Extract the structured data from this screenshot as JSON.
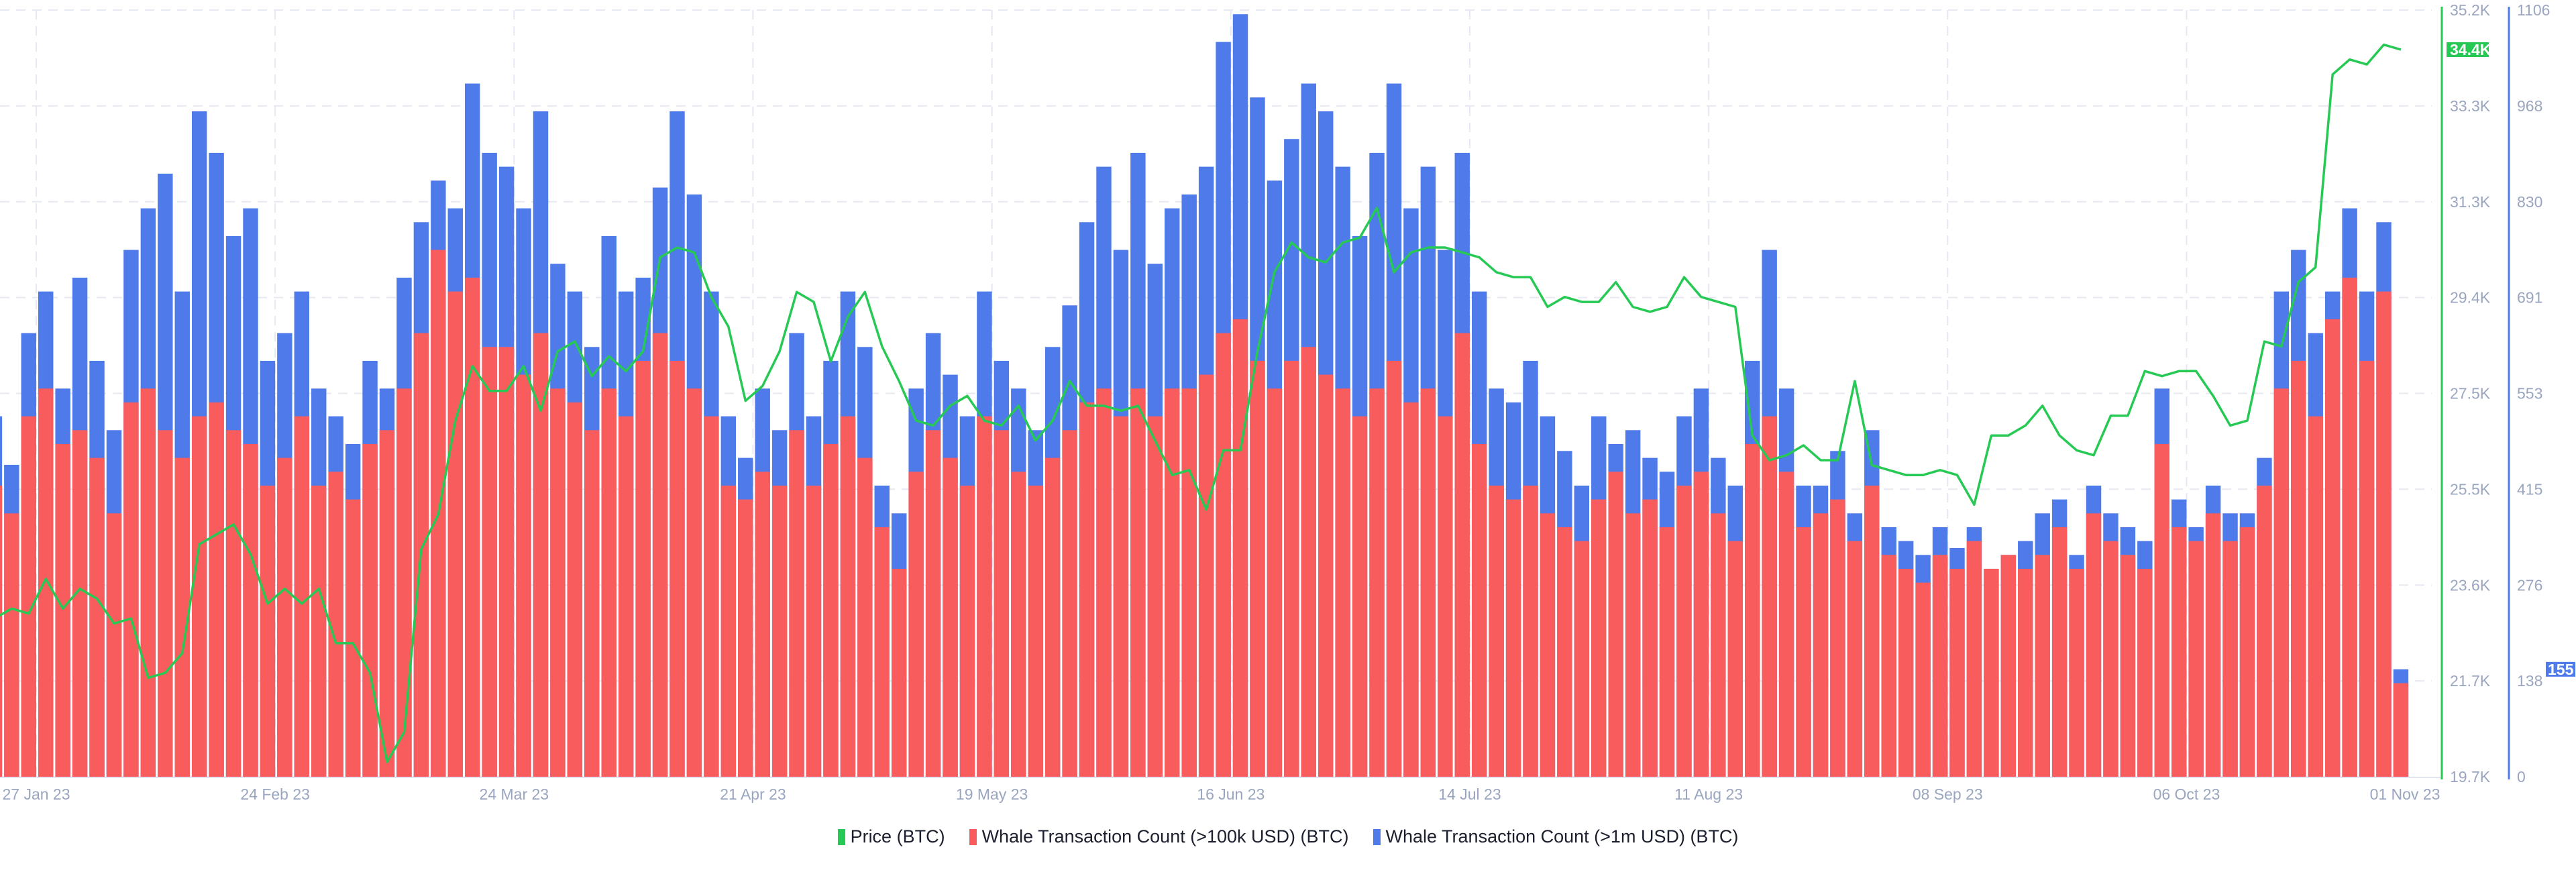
{
  "chart_data": {
    "type": "bar+line",
    "title": "",
    "legend_position": "bottom",
    "grid": true,
    "x_tick_labels": [
      "27 Jan 23",
      "24 Feb 23",
      "24 Mar 23",
      "21 Apr 23",
      "19 May 23",
      "16 Jun 23",
      "14 Jul 23",
      "11 Aug 23",
      "08 Sep 23",
      "06 Oct 23",
      "01 Nov 23"
    ],
    "x_tick_dates": [
      "2023-01-27",
      "2023-02-24",
      "2023-03-24",
      "2023-04-21",
      "2023-05-19",
      "2023-06-16",
      "2023-07-14",
      "2023-08-11",
      "2023-09-08",
      "2023-10-06",
      "2023-11-01"
    ],
    "price_axis": {
      "ticks": [
        "35.2K",
        "33.3K",
        "31.3K",
        "29.4K",
        "27.5K",
        "25.5K",
        "23.6K",
        "21.7K",
        "19.7K"
      ],
      "range": [
        19700,
        35200
      ],
      "color": "#26c953"
    },
    "count_axis": {
      "ticks": [
        "1106",
        "968",
        "830",
        "691",
        "553",
        "415",
        "276",
        "138",
        "0"
      ],
      "range": [
        0,
        1106
      ],
      "color": "#4f7bea"
    },
    "current_price_label": "34.4K",
    "current_count_label": "155",
    "dates": [
      "2023-01-23",
      "2023-01-25",
      "2023-01-27",
      "2023-01-29",
      "2023-01-31",
      "2023-02-02",
      "2023-02-04",
      "2023-02-06",
      "2023-02-08",
      "2023-02-10",
      "2023-02-12",
      "2023-02-14",
      "2023-02-16",
      "2023-02-18",
      "2023-02-20",
      "2023-02-22",
      "2023-02-24",
      "2023-02-26",
      "2023-02-28",
      "2023-03-02",
      "2023-03-04",
      "2023-03-06",
      "2023-03-08",
      "2023-03-10",
      "2023-03-12",
      "2023-03-14",
      "2023-03-16",
      "2023-03-18",
      "2023-03-20",
      "2023-03-22",
      "2023-03-24",
      "2023-03-26",
      "2023-03-28",
      "2023-03-30",
      "2023-04-01",
      "2023-04-03",
      "2023-04-05",
      "2023-04-07",
      "2023-04-09",
      "2023-04-11",
      "2023-04-13",
      "2023-04-15",
      "2023-04-17",
      "2023-04-19",
      "2023-04-21",
      "2023-04-23",
      "2023-04-25",
      "2023-04-27",
      "2023-04-29",
      "2023-05-01",
      "2023-05-03",
      "2023-05-05",
      "2023-05-07",
      "2023-05-09",
      "2023-05-11",
      "2023-05-13",
      "2023-05-15",
      "2023-05-17",
      "2023-05-19",
      "2023-05-21",
      "2023-05-23",
      "2023-05-25",
      "2023-05-27",
      "2023-05-29",
      "2023-05-31",
      "2023-06-02",
      "2023-06-04",
      "2023-06-06",
      "2023-06-08",
      "2023-06-10",
      "2023-06-12",
      "2023-06-14",
      "2023-06-16",
      "2023-06-18",
      "2023-06-20",
      "2023-06-22",
      "2023-06-24",
      "2023-06-26",
      "2023-06-28",
      "2023-06-30",
      "2023-07-02",
      "2023-07-04",
      "2023-07-06",
      "2023-07-08",
      "2023-07-10",
      "2023-07-12",
      "2023-07-14",
      "2023-07-16",
      "2023-07-18",
      "2023-07-20",
      "2023-07-22",
      "2023-07-24",
      "2023-07-26",
      "2023-07-28",
      "2023-07-30",
      "2023-08-01",
      "2023-08-03",
      "2023-08-05",
      "2023-08-07",
      "2023-08-09",
      "2023-08-11",
      "2023-08-13",
      "2023-08-15",
      "2023-08-17",
      "2023-08-19",
      "2023-08-21",
      "2023-08-23",
      "2023-08-25",
      "2023-08-27",
      "2023-08-29",
      "2023-08-31",
      "2023-09-02",
      "2023-09-04",
      "2023-09-06",
      "2023-09-08",
      "2023-09-10",
      "2023-09-12",
      "2023-09-14",
      "2023-09-16",
      "2023-09-18",
      "2023-09-20",
      "2023-09-22",
      "2023-09-24",
      "2023-09-26",
      "2023-09-28",
      "2023-09-30",
      "2023-10-02",
      "2023-10-04",
      "2023-10-06",
      "2023-10-08",
      "2023-10-10",
      "2023-10-12",
      "2023-10-14",
      "2023-10-16",
      "2023-10-18",
      "2023-10-20",
      "2023-10-22",
      "2023-10-24",
      "2023-10-26",
      "2023-10-28",
      "2023-10-30",
      "2023-11-01"
    ],
    "series": [
      {
        "name": "Price (BTC)",
        "type": "line",
        "color": "#26c953",
        "axis": "price",
        "values": [
          22900,
          23100,
          23000,
          23700,
          23100,
          23500,
          23300,
          22800,
          22900,
          21700,
          21800,
          22200,
          24400,
          24600,
          24800,
          24200,
          23200,
          23500,
          23200,
          23500,
          22400,
          22400,
          21800,
          20000,
          20600,
          24300,
          25000,
          26900,
          28000,
          27500,
          27500,
          28000,
          27100,
          28300,
          28500,
          27800,
          28200,
          27900,
          28300,
          30200,
          30400,
          30300,
          29400,
          28800,
          27300,
          27600,
          28300,
          29500,
          29300,
          28100,
          29000,
          29500,
          28400,
          27700,
          26900,
          26800,
          27200,
          27400,
          26900,
          26800,
          27200,
          26500,
          26900,
          27700,
          27200,
          27200,
          27100,
          27200,
          26500,
          25800,
          25900,
          25100,
          26300,
          26300,
          28300,
          29900,
          30500,
          30200,
          30100,
          30500,
          30600,
          31200,
          29900,
          30300,
          30400,
          30400,
          30300,
          30200,
          29900,
          29800,
          29800,
          29200,
          29400,
          29300,
          29300,
          29700,
          29200,
          29100,
          29200,
          29800,
          29400,
          29300,
          29200,
          26600,
          26100,
          26200,
          26400,
          26100,
          26100,
          27700,
          26000,
          25900,
          25800,
          25800,
          25900,
          25800,
          25200,
          26600,
          26600,
          26800,
          27200,
          26600,
          26300,
          26200,
          27000,
          27000,
          27900,
          27800,
          27900,
          27900,
          27400,
          26800,
          26900,
          28500,
          28400,
          29700,
          30000,
          33900,
          34200,
          34100,
          34500,
          34400
        ]
      },
      {
        "name": "Whale Transaction Count (>100k USD) (BTC)",
        "type": "bar",
        "color": "#f95c5c",
        "axis": "count",
        "values": [
          420,
          380,
          520,
          560,
          480,
          500,
          460,
          380,
          540,
          560,
          500,
          460,
          520,
          540,
          500,
          480,
          420,
          460,
          520,
          420,
          440,
          400,
          480,
          500,
          560,
          640,
          760,
          700,
          720,
          620,
          620,
          580,
          640,
          560,
          540,
          500,
          560,
          520,
          600,
          640,
          600,
          560,
          520,
          420,
          400,
          440,
          420,
          500,
          420,
          480,
          520,
          460,
          360,
          300,
          440,
          500,
          460,
          420,
          520,
          500,
          440,
          420,
          460,
          500,
          540,
          560,
          520,
          560,
          520,
          560,
          560,
          580,
          640,
          660,
          600,
          560,
          600,
          620,
          580,
          560,
          520,
          560,
          600,
          540,
          560,
          520,
          640,
          480,
          420,
          400,
          420,
          380,
          360,
          340,
          400,
          440,
          380,
          400,
          360,
          420,
          440,
          380,
          340,
          480,
          520,
          440,
          360,
          380,
          400,
          340,
          420,
          320,
          300,
          280,
          320,
          300,
          340,
          300,
          320,
          300,
          320,
          360,
          300,
          380,
          340,
          320,
          300,
          480,
          360,
          340,
          380,
          340,
          360,
          420,
          560,
          600,
          520,
          660,
          720,
          600,
          700,
          135
        ]
      },
      {
        "name": "Whale Transaction Count (>1m USD) (BTC)",
        "type": "bar",
        "color": "#4f7bea",
        "axis": "count",
        "values": [
          520,
          450,
          640,
          700,
          560,
          720,
          600,
          500,
          760,
          820,
          870,
          700,
          960,
          900,
          780,
          820,
          600,
          640,
          700,
          560,
          520,
          480,
          600,
          560,
          720,
          800,
          860,
          820,
          1000,
          900,
          880,
          820,
          960,
          740,
          700,
          620,
          780,
          700,
          720,
          850,
          960,
          840,
          700,
          520,
          460,
          560,
          500,
          640,
          520,
          600,
          700,
          620,
          420,
          380,
          560,
          640,
          580,
          520,
          700,
          600,
          560,
          500,
          620,
          680,
          800,
          880,
          760,
          900,
          740,
          820,
          840,
          880,
          1060,
          1100,
          980,
          860,
          920,
          1000,
          960,
          880,
          780,
          900,
          1000,
          820,
          880,
          760,
          900,
          700,
          560,
          540,
          600,
          520,
          470,
          420,
          520,
          480,
          500,
          460,
          440,
          520,
          560,
          460,
          420,
          600,
          760,
          560,
          420,
          420,
          470,
          380,
          500,
          360,
          340,
          320,
          360,
          330,
          360,
          300,
          320,
          340,
          380,
          400,
          320,
          420,
          380,
          360,
          340,
          560,
          400,
          360,
          420,
          380,
          380,
          460,
          700,
          760,
          640,
          700,
          820,
          700,
          800,
          155
        ]
      }
    ]
  }
}
